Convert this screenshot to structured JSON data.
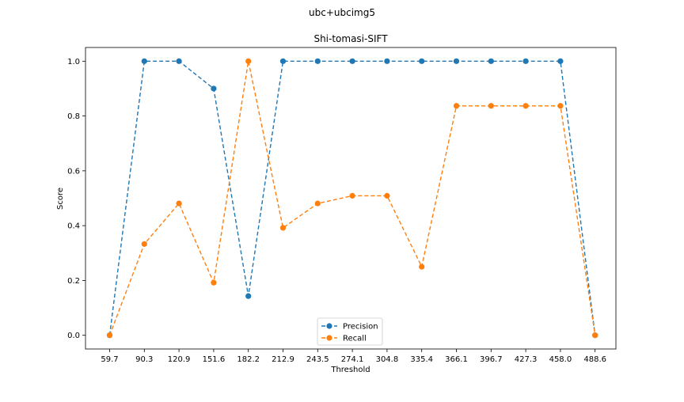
{
  "figure": {
    "suptitle": "ubc+ubcimg5"
  },
  "chart_data": {
    "type": "line",
    "title": "Shi-tomasi-SIFT",
    "xlabel": "Threshold",
    "ylabel": "Score",
    "categories": [
      "59.7",
      "90.3",
      "120.9",
      "151.6",
      "182.2",
      "212.9",
      "243.5",
      "274.1",
      "304.8",
      "335.4",
      "366.1",
      "396.7",
      "427.3",
      "458.0",
      "488.6"
    ],
    "ylim": [
      -0.05,
      1.05
    ],
    "yticks": [
      "0.0",
      "0.2",
      "0.4",
      "0.6",
      "0.8",
      "1.0"
    ],
    "grid": false,
    "legend_position": "bottom-center",
    "series": [
      {
        "name": "Precision",
        "color": "#1f77b4",
        "values": [
          0.0,
          1.0,
          1.0,
          0.9,
          0.143,
          1.0,
          1.0,
          1.0,
          1.0,
          1.0,
          1.0,
          1.0,
          1.0,
          1.0,
          0.0
        ]
      },
      {
        "name": "Recall",
        "color": "#ff7f0e",
        "values": [
          0.0,
          0.333,
          0.481,
          0.192,
          1.0,
          0.392,
          0.481,
          0.509,
          0.509,
          0.25,
          0.837,
          0.837,
          0.837,
          0.837,
          0.0
        ]
      }
    ]
  }
}
